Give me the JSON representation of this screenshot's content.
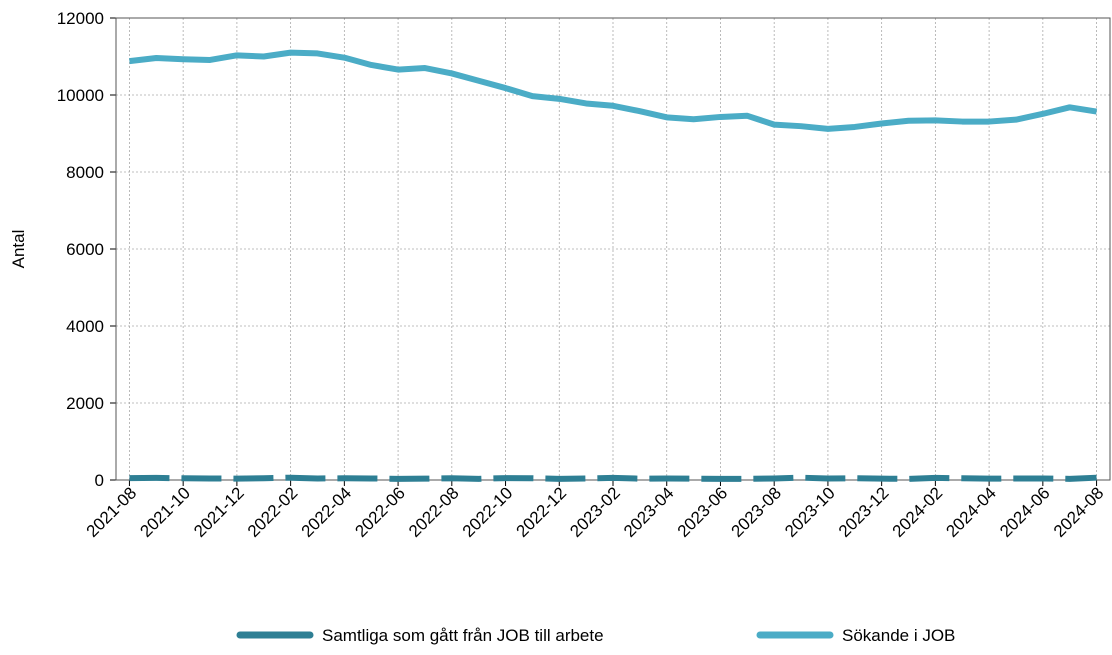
{
  "chart_data": {
    "type": "line",
    "y_label": "Antal",
    "categories": [
      "2021-08",
      null,
      "2021-10",
      null,
      "2021-12",
      null,
      "2022-02",
      null,
      "2022-04",
      null,
      "2022-06",
      null,
      "2022-08",
      null,
      "2022-10",
      null,
      "2022-12",
      null,
      "2023-02",
      null,
      "2023-04",
      null,
      "2023-06",
      null,
      "2023-08",
      null,
      "2023-10",
      null,
      "2023-12",
      null,
      "2024-02",
      null,
      "2024-04",
      null,
      "2024-06",
      null,
      "2024-08"
    ],
    "series": [
      {
        "name": "Samtliga som gått från JOB till arbete",
        "color": "#2e7f94",
        "values": [
          50,
          55,
          45,
          40,
          35,
          45,
          60,
          40,
          45,
          40,
          30,
          35,
          45,
          30,
          50,
          45,
          30,
          40,
          55,
          35,
          40,
          35,
          30,
          30,
          40,
          60,
          40,
          45,
          35,
          30,
          55,
          45,
          35,
          40,
          40,
          30,
          60
        ]
      },
      {
        "name": "Sökande i JOB",
        "color": "#4bacc6",
        "values": [
          10880,
          10960,
          10930,
          10910,
          11030,
          11000,
          11100,
          11080,
          10970,
          10780,
          10660,
          10700,
          10560,
          10370,
          10180,
          9970,
          9900,
          9780,
          9720,
          9580,
          9420,
          9370,
          9430,
          9460,
          9230,
          9190,
          9120,
          9170,
          9260,
          9330,
          9340,
          9310,
          9310,
          9360,
          9510,
          9680,
          9570
        ]
      }
    ],
    "ylim": [
      0,
      12000
    ],
    "yticks": [
      0,
      2000,
      4000,
      6000,
      8000,
      10000,
      12000
    ],
    "grid": true
  }
}
